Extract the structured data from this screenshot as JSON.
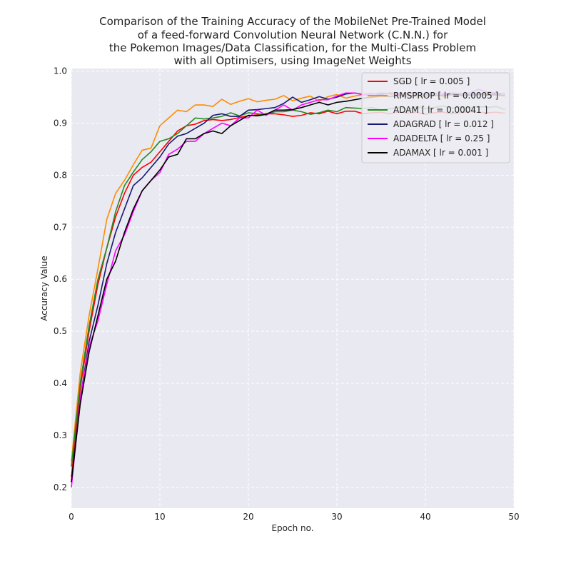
{
  "chart_data": {
    "type": "line",
    "title_lines": [
      "Comparison of the Training Accuracy of the MobileNet Pre-Trained Model",
      "of a feed-forward Convolution Neural Network (C.N.N.) for",
      "the Pokemon Images/Data Classification, for the Multi-Class Problem",
      "with all Optimisers, using ImageNet Weights"
    ],
    "xlabel": "Epoch no.",
    "ylabel": "Accuracy Value",
    "xlim": [
      0,
      50
    ],
    "ylim": [
      0.16,
      1.005
    ],
    "xticks": [
      0,
      10,
      20,
      30,
      40,
      50
    ],
    "yticks": [
      0.2,
      0.3,
      0.4,
      0.5,
      0.6,
      0.7,
      0.8,
      0.9,
      1.0
    ],
    "grid": true,
    "legend_position": "top-right",
    "plot_background": "#e9e9f1",
    "x": [
      0,
      1,
      2,
      3,
      4,
      5,
      6,
      7,
      8,
      9,
      10,
      11,
      12,
      13,
      14,
      15,
      16,
      17,
      18,
      19,
      20,
      21,
      22,
      23,
      24,
      25,
      26,
      27,
      28,
      29,
      30,
      31,
      32,
      33,
      34,
      35,
      36,
      37,
      38,
      39,
      40,
      41,
      42,
      43,
      44,
      45,
      46,
      47,
      48,
      49
    ],
    "series": [
      {
        "name": "SGD [ lr = 0.005 ]",
        "color": "#ff0000",
        "values": [
          0.22,
          0.39,
          0.5,
          0.59,
          0.66,
          0.72,
          0.765,
          0.8,
          0.815,
          0.825,
          0.845,
          0.865,
          0.885,
          0.895,
          0.898,
          0.905,
          0.907,
          0.905,
          0.907,
          0.911,
          0.914,
          0.916,
          0.918,
          0.918,
          0.916,
          0.913,
          0.915,
          0.92,
          0.918,
          0.923,
          0.918,
          0.923,
          0.923,
          0.918,
          0.92,
          0.921,
          0.918,
          0.922,
          0.919,
          0.921,
          0.917,
          0.92,
          0.921,
          0.918,
          0.92,
          0.922,
          0.921,
          0.92,
          0.921,
          0.919
        ]
      },
      {
        "name": "RMSPROP [ lr = 0.0005 ]",
        "color": "#ff8c00",
        "values": [
          0.25,
          0.42,
          0.53,
          0.62,
          0.715,
          0.765,
          0.79,
          0.82,
          0.848,
          0.852,
          0.895,
          0.91,
          0.925,
          0.922,
          0.935,
          0.935,
          0.932,
          0.946,
          0.936,
          0.942,
          0.947,
          0.941,
          0.944,
          0.946,
          0.953,
          0.943,
          0.948,
          0.952,
          0.942,
          0.951,
          0.955,
          0.948,
          0.952,
          0.955,
          0.95,
          0.952,
          0.955,
          0.953,
          0.956,
          0.95,
          0.952,
          0.954,
          0.951,
          0.955,
          0.953,
          0.956,
          0.958,
          0.955,
          0.953,
          0.952
        ]
      },
      {
        "name": "ADAM [ lr = 0.00041 ]",
        "color": "#228b22",
        "values": [
          0.24,
          0.4,
          0.51,
          0.6,
          0.66,
          0.73,
          0.78,
          0.806,
          0.83,
          0.845,
          0.865,
          0.87,
          0.88,
          0.895,
          0.91,
          0.908,
          0.91,
          0.913,
          0.92,
          0.914,
          0.92,
          0.918,
          0.916,
          0.922,
          0.922,
          0.925,
          0.922,
          0.917,
          0.92,
          0.925,
          0.922,
          0.93,
          0.929,
          0.928,
          0.93,
          0.925,
          0.928,
          0.93,
          0.926,
          0.932,
          0.928,
          0.93,
          0.933,
          0.929,
          0.931,
          0.93,
          0.932,
          0.93,
          0.932,
          0.926
        ]
      },
      {
        "name": "ADAGRAD [ lr = 0.012 ]",
        "color": "#191970",
        "values": [
          0.21,
          0.37,
          0.48,
          0.55,
          0.63,
          0.69,
          0.735,
          0.78,
          0.795,
          0.815,
          0.835,
          0.86,
          0.875,
          0.88,
          0.89,
          0.9,
          0.915,
          0.918,
          0.913,
          0.913,
          0.925,
          0.926,
          0.928,
          0.93,
          0.938,
          0.95,
          0.94,
          0.945,
          0.951,
          0.946,
          0.95,
          0.956,
          0.958,
          0.955,
          0.957,
          0.955,
          0.958,
          0.957,
          0.956,
          0.958,
          0.955,
          0.957,
          0.956,
          0.958,
          0.957,
          0.955,
          0.957,
          0.958,
          0.956,
          0.957
        ]
      },
      {
        "name": "ADADELTA [ lr = 0.25 ]",
        "color": "#ff00ff",
        "values": [
          0.2,
          0.37,
          0.47,
          0.52,
          0.59,
          0.655,
          0.685,
          0.73,
          0.77,
          0.79,
          0.805,
          0.84,
          0.85,
          0.865,
          0.865,
          0.88,
          0.89,
          0.9,
          0.895,
          0.91,
          0.91,
          0.925,
          0.915,
          0.925,
          0.935,
          0.925,
          0.935,
          0.94,
          0.945,
          0.945,
          0.952,
          0.958,
          0.958,
          0.955,
          0.956,
          0.958,
          0.957,
          0.955,
          0.958,
          0.956,
          0.957,
          0.958,
          0.955,
          0.957,
          0.956,
          0.958,
          0.965,
          0.96,
          0.958,
          0.956
        ]
      },
      {
        "name": "ADAMAX [ lr = 0.001 ]",
        "color": "#000000",
        "values": [
          0.21,
          0.36,
          0.46,
          0.53,
          0.6,
          0.635,
          0.69,
          0.735,
          0.77,
          0.79,
          0.81,
          0.835,
          0.84,
          0.87,
          0.87,
          0.88,
          0.885,
          0.88,
          0.895,
          0.905,
          0.915,
          0.914,
          0.917,
          0.925,
          0.925,
          0.926,
          0.93,
          0.935,
          0.94,
          0.935,
          0.94,
          0.942,
          0.945,
          0.948,
          0.95,
          0.952,
          0.951,
          0.953,
          0.952,
          0.954,
          0.952,
          0.954,
          0.953,
          0.955,
          0.954,
          0.953,
          0.955,
          0.954,
          0.955,
          0.953
        ]
      }
    ]
  }
}
